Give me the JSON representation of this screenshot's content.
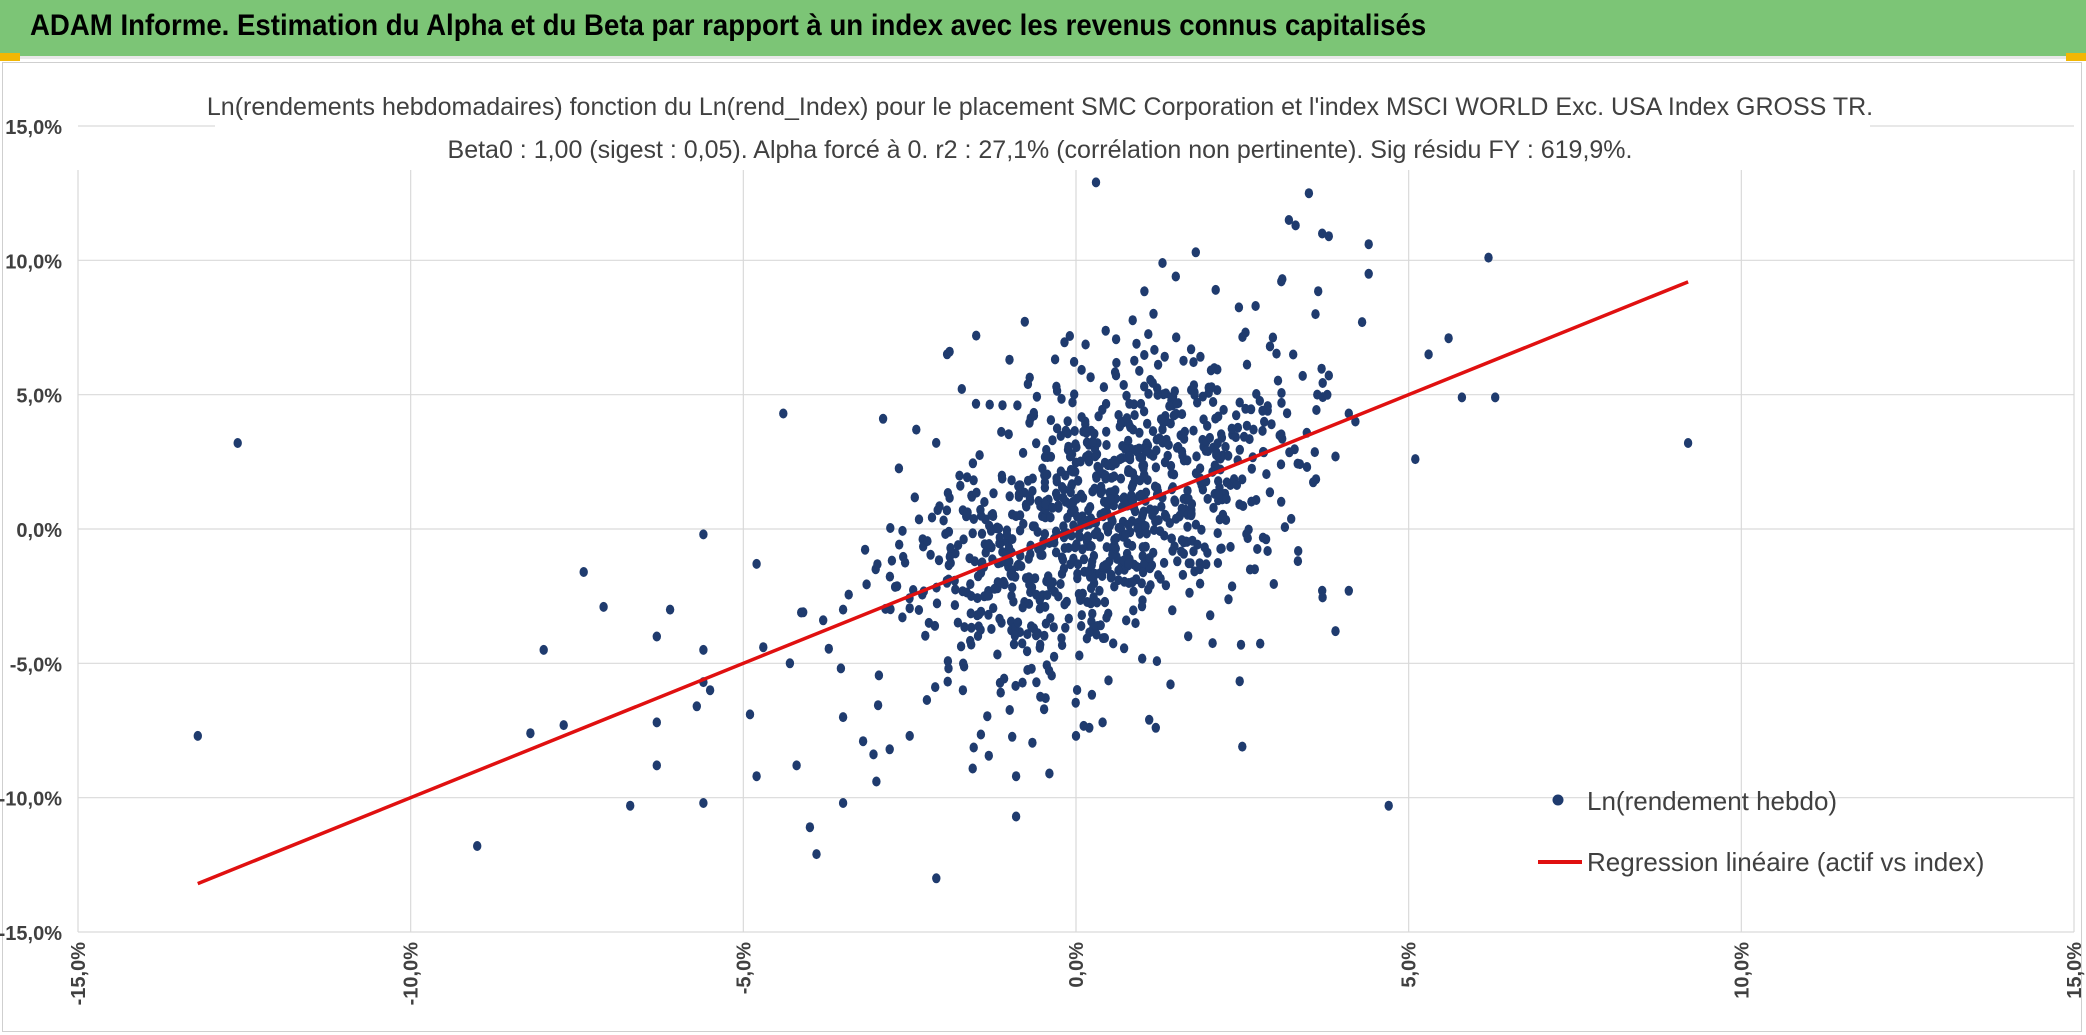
{
  "header": {
    "title": "ADAM Informe. Estimation du Alpha et du Beta par rapport à un index avec les revenus connus capitalisés"
  },
  "colors": {
    "header_bg": "#7cc576",
    "points": "#1f3b6e",
    "regression": "#e01010",
    "grid": "#d9d9d9"
  },
  "chart_data": {
    "type": "scatter",
    "title": "Ln(rendements hebdomadaires) fonction du Ln(rend_Index) pour le placement SMC Corporation et l'index MSCI WORLD Exc. USA Index GROSS TR.",
    "subtitle": "Beta0 : 1,00 (sigest : 0,05). Alpha forcé à 0. r2 : 27,1% (corrélation non pertinente). Sig résidu FY : 619,9%.",
    "xlim": [
      -15,
      15
    ],
    "ylim": [
      -15,
      15
    ],
    "xticks": [
      -15,
      -10,
      -5,
      0,
      5,
      10,
      15
    ],
    "yticks": [
      -15,
      -10,
      -5,
      0,
      5,
      10,
      15
    ],
    "xtick_labels": [
      "-15,0%",
      "-10,0%",
      "-5,0%",
      "0,0%",
      "5,0%",
      "10,0%",
      "15,0%"
    ],
    "ytick_labels": [
      "-15,0%",
      "-10,0%",
      "-5,0%",
      "0,0%",
      "5,0%",
      "10,0%",
      "15,0%"
    ],
    "grid": true,
    "legend_position": "bottom-right",
    "series": [
      {
        "name": "Ln(rendement hebdo)",
        "kind": "scatter",
        "points": [
          [
            -13.2,
            -7.7
          ],
          [
            -12.6,
            3.2
          ],
          [
            -9.0,
            -11.8
          ],
          [
            -8.0,
            -4.5
          ],
          [
            -8.2,
            -7.6
          ],
          [
            -7.7,
            -7.3
          ],
          [
            -7.4,
            -1.6
          ],
          [
            -7.1,
            -2.9
          ],
          [
            -6.7,
            -10.3
          ],
          [
            -6.3,
            -7.2
          ],
          [
            -6.3,
            -8.8
          ],
          [
            -6.3,
            -4.0
          ],
          [
            -6.1,
            -3.0
          ],
          [
            -5.7,
            -6.6
          ],
          [
            -5.6,
            -0.2
          ],
          [
            -5.6,
            -4.5
          ],
          [
            -5.6,
            -10.2
          ],
          [
            -5.6,
            -5.7
          ],
          [
            -5.5,
            -6.0
          ],
          [
            -4.9,
            -6.9
          ],
          [
            -4.8,
            -1.3
          ],
          [
            -4.8,
            -9.2
          ],
          [
            -4.7,
            -4.4
          ],
          [
            -4.4,
            4.3
          ],
          [
            -4.3,
            -5.0
          ],
          [
            -4.2,
            -8.8
          ],
          [
            -4.1,
            -3.1
          ],
          [
            -4.0,
            -11.1
          ],
          [
            -3.9,
            -12.1
          ],
          [
            -3.8,
            -3.4
          ],
          [
            -3.5,
            -10.2
          ],
          [
            -3.5,
            -7.0
          ],
          [
            -3.5,
            -3.0
          ],
          [
            -3.2,
            -7.9
          ],
          [
            -3.0,
            -9.4
          ],
          [
            -2.9,
            4.1
          ],
          [
            -2.8,
            -8.2
          ],
          [
            -2.5,
            -7.7
          ],
          [
            -2.4,
            3.7
          ],
          [
            -2.1,
            -13.0
          ],
          [
            -1.9,
            6.6
          ],
          [
            -1.7,
            -6.0
          ],
          [
            -1.5,
            7.2
          ],
          [
            -1.0,
            6.3
          ],
          [
            -0.9,
            -9.2
          ],
          [
            -0.9,
            -10.7
          ],
          [
            -0.4,
            -9.1
          ],
          [
            0.0,
            -7.7
          ],
          [
            0.2,
            -7.4
          ],
          [
            0.3,
            12.9
          ],
          [
            0.4,
            -7.2
          ],
          [
            1.1,
            -7.1
          ],
          [
            1.2,
            -7.4
          ],
          [
            1.3,
            9.9
          ],
          [
            1.5,
            9.4
          ],
          [
            1.8,
            10.3
          ],
          [
            2.1,
            8.9
          ],
          [
            2.5,
            -8.1
          ],
          [
            2.7,
            8.3
          ],
          [
            3.1,
            9.3
          ],
          [
            3.2,
            11.5
          ],
          [
            3.3,
            11.3
          ],
          [
            3.5,
            12.5
          ],
          [
            3.6,
            8.0
          ],
          [
            3.7,
            11.0
          ],
          [
            3.8,
            10.9
          ],
          [
            4.3,
            7.7
          ],
          [
            4.4,
            10.6
          ],
          [
            4.4,
            9.5
          ],
          [
            4.7,
            -10.3
          ],
          [
            5.1,
            2.6
          ],
          [
            5.3,
            6.5
          ],
          [
            5.6,
            7.1
          ],
          [
            5.8,
            4.9
          ],
          [
            6.2,
            10.1
          ],
          [
            6.3,
            4.9
          ],
          [
            9.2,
            3.2
          ],
          [
            3.9,
            -3.8
          ],
          [
            4.1,
            -2.3
          ],
          [
            4.1,
            4.3
          ],
          [
            4.2,
            4.0
          ],
          [
            3.7,
            -2.3
          ],
          [
            3.9,
            2.7
          ]
        ]
      },
      {
        "name": "Regression linéaire (actif vs index)",
        "kind": "line",
        "x": [
          -13.2,
          9.2
        ],
        "y": [
          -13.2,
          9.2
        ]
      }
    ]
  }
}
